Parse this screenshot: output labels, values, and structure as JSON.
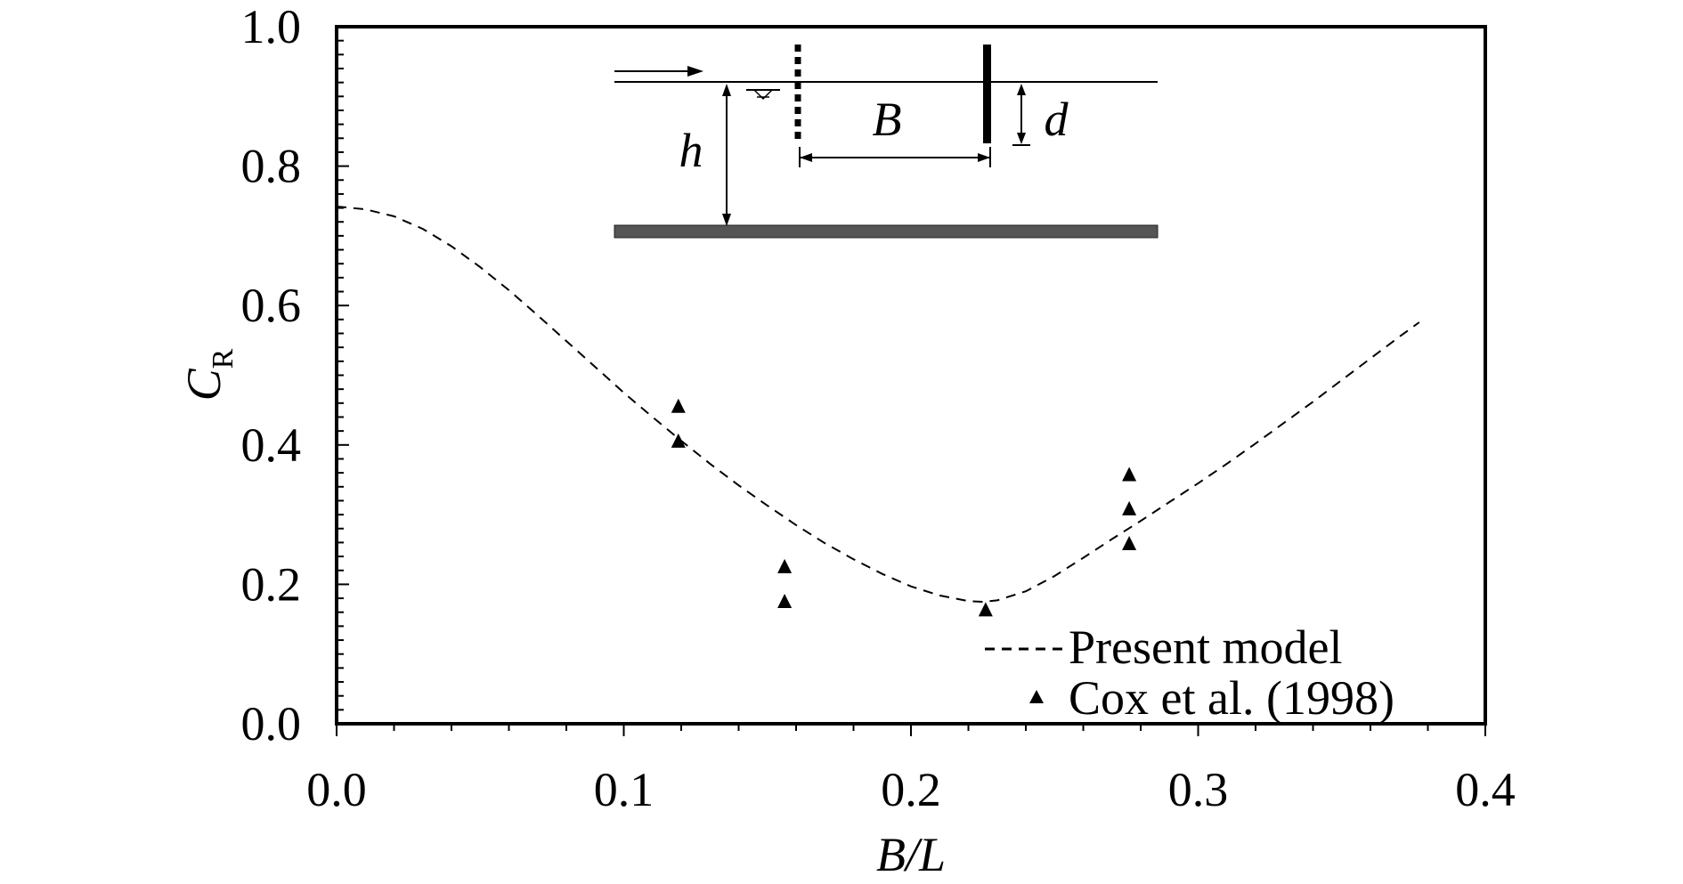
{
  "chart_data": {
    "type": "scatter",
    "xlabel": "B/L",
    "ylabel": {
      "main": "C",
      "sub": "R"
    },
    "xlim": [
      0.0,
      0.4
    ],
    "ylim": [
      0.0,
      1.0
    ],
    "x_ticks": [
      0.0,
      0.1,
      0.2,
      0.3,
      0.4
    ],
    "x_tick_labels": [
      "0.0",
      "0.1",
      "0.2",
      "0.3",
      "0.4"
    ],
    "y_ticks": [
      0.0,
      0.2,
      0.4,
      0.6,
      0.8,
      1.0
    ],
    "y_tick_labels": [
      "0.0",
      "0.2",
      "0.4",
      "0.6",
      "0.8",
      "1.0"
    ],
    "grid": false,
    "legend_position": "bottom-right",
    "series": [
      {
        "name": "Present model",
        "kind": "line",
        "style": "dashed",
        "color": "#000000",
        "x": [
          0.0,
          0.01,
          0.02,
          0.03,
          0.04,
          0.05,
          0.06,
          0.07,
          0.08,
          0.09,
          0.1,
          0.11,
          0.12,
          0.13,
          0.14,
          0.15,
          0.16,
          0.17,
          0.18,
          0.19,
          0.2,
          0.21,
          0.22,
          0.225,
          0.23,
          0.24,
          0.25,
          0.26,
          0.27,
          0.28,
          0.29,
          0.3,
          0.31,
          0.32,
          0.33,
          0.34,
          0.35,
          0.36,
          0.37,
          0.377
        ],
        "y": [
          0.742,
          0.738,
          0.728,
          0.71,
          0.685,
          0.655,
          0.622,
          0.586,
          0.549,
          0.512,
          0.475,
          0.44,
          0.406,
          0.373,
          0.342,
          0.313,
          0.285,
          0.259,
          0.236,
          0.215,
          0.197,
          0.184,
          0.176,
          0.175,
          0.177,
          0.19,
          0.212,
          0.238,
          0.265,
          0.291,
          0.318,
          0.345,
          0.373,
          0.402,
          0.432,
          0.462,
          0.493,
          0.524,
          0.555,
          0.576
        ]
      },
      {
        "name": "Cox et al. (1998)",
        "kind": "scatter",
        "marker": "triangle",
        "color": "#000000",
        "x": [
          0.119,
          0.119,
          0.156,
          0.156,
          0.226,
          0.276,
          0.276,
          0.276
        ],
        "y": [
          0.455,
          0.405,
          0.225,
          0.175,
          0.163,
          0.357,
          0.308,
          0.258
        ]
      }
    ],
    "inset": {
      "labels": {
        "h": "h",
        "B": "B",
        "d": "d"
      }
    }
  }
}
